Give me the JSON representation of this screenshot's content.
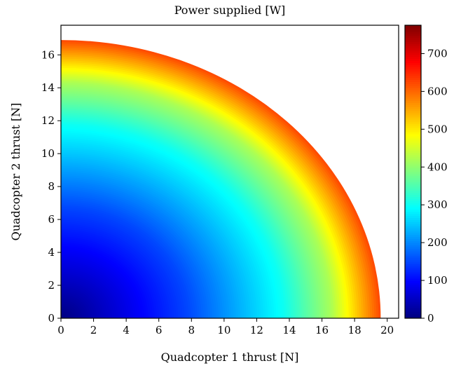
{
  "chart_data": {
    "type": "heatmap",
    "title": "Power supplied [W]",
    "xlabel": "Quadcopter 1 thrust [N]",
    "ylabel": "Quadcopter 2 thrust [N]",
    "xlim": [
      0,
      20.7
    ],
    "ylim": [
      0,
      17.8
    ],
    "x_ticks": [
      0,
      2,
      4,
      6,
      8,
      10,
      12,
      14,
      16,
      18,
      20
    ],
    "y_ticks": [
      0,
      2,
      4,
      6,
      8,
      10,
      12,
      14,
      16
    ],
    "x_tick_labels": [
      "0",
      "2",
      "4",
      "6",
      "8",
      "10",
      "12",
      "14",
      "16",
      "18",
      "20"
    ],
    "y_tick_labels": [
      "0",
      "2",
      "4",
      "6",
      "8",
      "10",
      "12",
      "14",
      "16"
    ],
    "feasible_region": {
      "shape": "quarter-ellipse",
      "x_max": 19.6,
      "y_max": 16.9
    },
    "colorbar": {
      "colormap": "jet",
      "vmin": 0,
      "vmax": 775,
      "ticks": [
        0,
        100,
        200,
        300,
        400,
        500,
        600,
        700
      ],
      "tick_labels": [
        "0",
        "100",
        "200",
        "300",
        "400",
        "500",
        "600",
        "700"
      ]
    },
    "power_model": {
      "description_of_levels": [
        {
          "normalized_radius": 0.0,
          "power": 0
        },
        {
          "normalized_radius": 0.4,
          "power": 150
        },
        {
          "normalized_radius": 0.7,
          "power": 300
        },
        {
          "normalized_radius": 0.85,
          "power": 420
        },
        {
          "normalized_radius": 1.0,
          "power": 620
        }
      ]
    },
    "grid": false
  }
}
